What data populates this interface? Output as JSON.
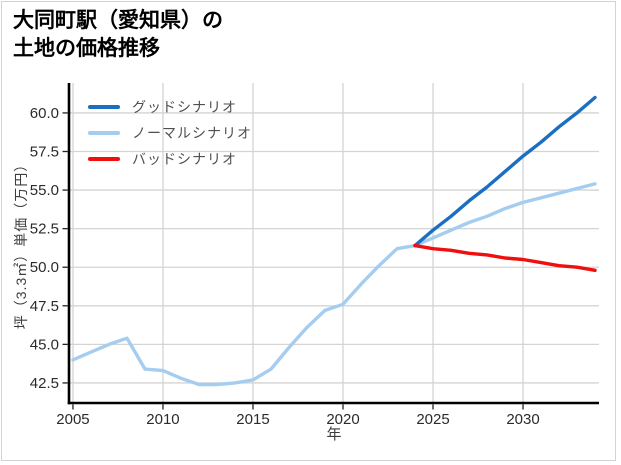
{
  "title": {
    "line1": "大同町駅（愛知県）の",
    "line2": "土地の価格推移"
  },
  "chart_data": {
    "type": "line",
    "title": "大同町駅（愛知県）の土地の価格推移",
    "xlabel": "年",
    "ylabel": "坪（3.3㎡）単価（万円）",
    "xlim": [
      2004.78,
      2034.22
    ],
    "ylim": [
      41.2,
      61.94
    ],
    "xticks": [
      2005,
      2010,
      2015,
      2020,
      2025,
      2030
    ],
    "yticks": [
      42.5,
      45.0,
      47.5,
      50.0,
      52.5,
      55.0,
      57.5,
      60.0
    ],
    "grid": true,
    "legend_position": "upper-left",
    "colors": {
      "good": "#1b6fc2",
      "normal": "#a4cdf0",
      "bad": "#f10e0e",
      "gridline": "#d4d4d4",
      "spine": "#000000"
    },
    "series": [
      {
        "id": "good",
        "name": "グッドシナリオ",
        "color": "#1b6fc2",
        "z": 2,
        "x": [
          2024,
          2025,
          2026,
          2027,
          2028,
          2029,
          2030,
          2031,
          2032,
          2033,
          2034
        ],
        "y": [
          51.4,
          52.4,
          53.3,
          54.3,
          55.2,
          56.2,
          57.2,
          58.1,
          59.1,
          60.0,
          61.0
        ]
      },
      {
        "id": "normal",
        "name": "ノーマルシナリオ",
        "color": "#a4cdf0",
        "z": 1,
        "x": [
          2005,
          2006,
          2007,
          2008,
          2009,
          2010,
          2011,
          2012,
          2013,
          2014,
          2015,
          2016,
          2017,
          2018,
          2019,
          2020,
          2021,
          2022,
          2023,
          2024,
          2025,
          2026,
          2027,
          2028,
          2029,
          2030,
          2031,
          2032,
          2033,
          2034
        ],
        "y": [
          44.0,
          44.5,
          45.0,
          45.4,
          43.4,
          43.3,
          42.8,
          42.4,
          42.4,
          42.5,
          42.7,
          43.4,
          44.8,
          46.1,
          47.2,
          47.6,
          48.9,
          50.1,
          51.2,
          51.4,
          51.9,
          52.4,
          52.9,
          53.3,
          53.8,
          54.2,
          54.5,
          54.8,
          55.1,
          55.4
        ]
      },
      {
        "id": "bad",
        "name": "バッドシナリオ",
        "color": "#f10e0e",
        "z": 3,
        "x": [
          2024,
          2025,
          2026,
          2027,
          2028,
          2029,
          2030,
          2031,
          2032,
          2033,
          2034
        ],
        "y": [
          51.4,
          51.2,
          51.1,
          50.9,
          50.8,
          50.6,
          50.5,
          50.3,
          50.1,
          50.0,
          49.8
        ]
      }
    ]
  }
}
